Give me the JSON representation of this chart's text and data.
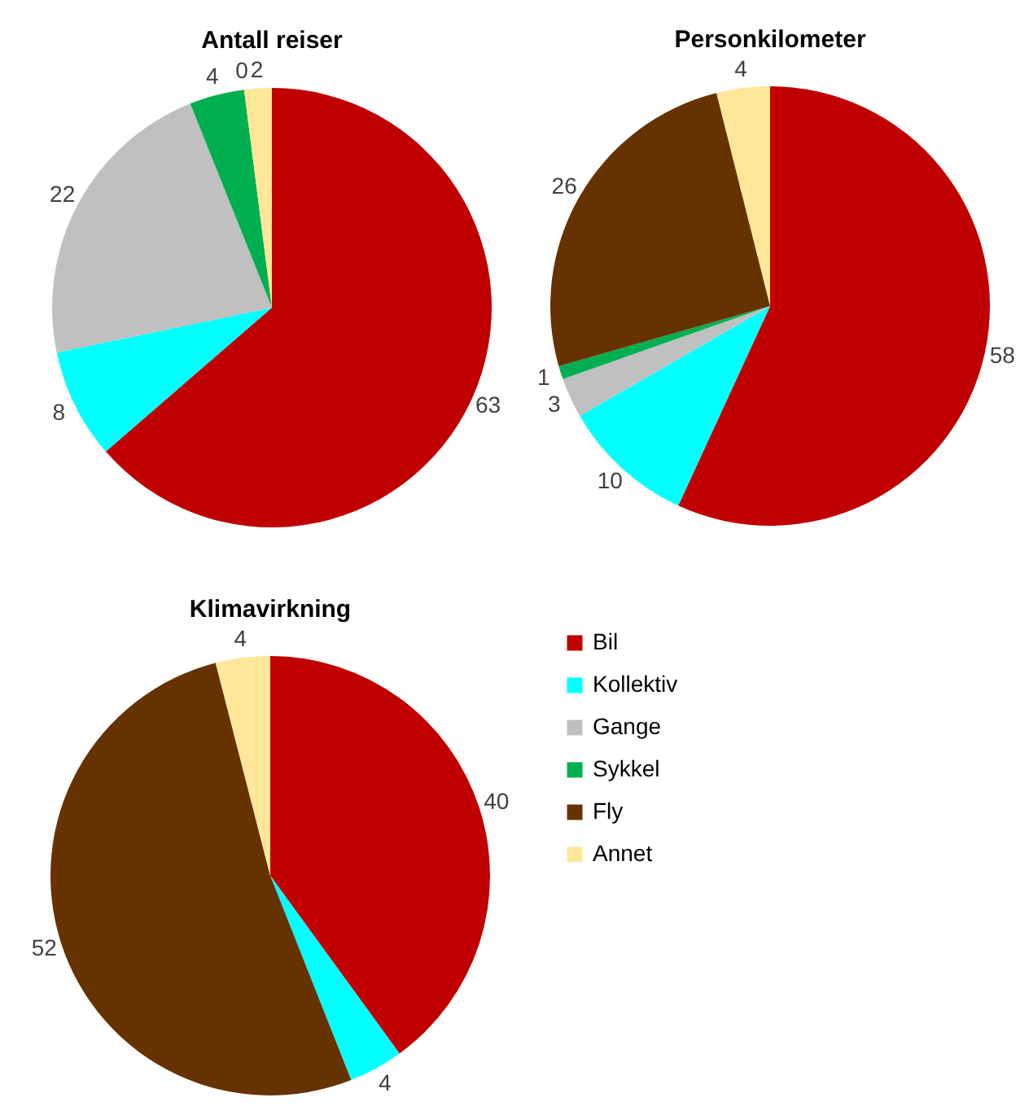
{
  "chart_data": [
    {
      "type": "pie",
      "title": "Antall reiser",
      "categories": [
        null,
        null,
        null,
        null,
        null,
        null
      ],
      "values": [
        63,
        8,
        22,
        4,
        0,
        2
      ],
      "value_labels": [
        "63",
        "8",
        "22",
        "4",
        "0",
        "2"
      ],
      "colors": [
        "#c00000",
        "#00ffff",
        "#c0c0c0",
        "#00b050",
        "#663300",
        "#ffe699"
      ]
    },
    {
      "type": "pie",
      "title": "Personkilometer",
      "categories": [
        null,
        null,
        null,
        null,
        null,
        null
      ],
      "values": [
        58,
        10,
        3,
        1,
        26,
        4
      ],
      "colors": [
        "#c00000",
        "#00ffff",
        "#c0c0c0",
        "#00b050",
        "#663300",
        "#ffe699"
      ],
      "data_labels": true
    },
    {
      "type": "pie",
      "title": "Klimavirkning",
      "categories": [
        "Bil",
        "Kollektiv",
        "Gange",
        "Sykkel",
        "Fly",
        "Annet"
      ],
      "values": [
        40,
        4,
        0,
        0,
        52,
        4
      ],
      "value_labels": [
        "40",
        "4",
        null,
        null,
        "52",
        "4"
      ],
      "colors": [
        "#c00000",
        "#00ffff",
        "#c0c0c0",
        "#00b050",
        "#663300",
        "#ffe699"
      ],
      "legend": "right"
    }
  ]
}
